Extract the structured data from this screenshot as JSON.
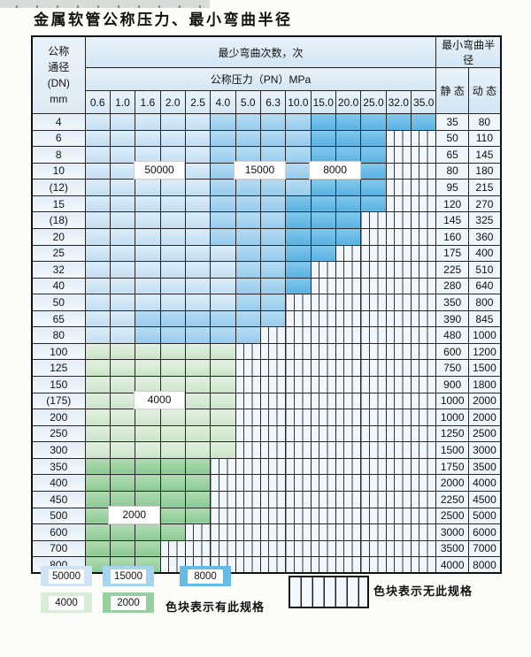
{
  "page": {
    "title": "金属软管公称压力、最小弯曲半径"
  },
  "table": {
    "corner_header": [
      "公称",
      "通径",
      "(DN)",
      "mm"
    ],
    "cycles_header": "最少弯曲次数，次",
    "pressure_header": "公称压力（PN）MPa",
    "radius_header": "最小弯曲半径",
    "static_header": "静 态",
    "dynamic_header": "动 态",
    "pressure_columns": [
      "0.6",
      "1.0",
      "1.6",
      "2.0",
      "2.5",
      "4.0",
      "5.0",
      "6.3",
      "10.0",
      "15.0",
      "20.0",
      "25.0",
      "32.0",
      "35.0"
    ],
    "rows": [
      {
        "dn": "4",
        "static": "35",
        "dynamic": "80",
        "bands": [
          {
            "cycles": 50000,
            "to_col": 5
          },
          {
            "cycles": 15000,
            "to_col": 9
          },
          {
            "cycles": 8000,
            "to_col": 14
          }
        ]
      },
      {
        "dn": "6",
        "static": "50",
        "dynamic": "110",
        "bands": [
          {
            "cycles": 50000,
            "to_col": 5
          },
          {
            "cycles": 15000,
            "to_col": 9
          },
          {
            "cycles": 8000,
            "to_col": 12
          }
        ]
      },
      {
        "dn": "8",
        "static": "65",
        "dynamic": "145",
        "bands": [
          {
            "cycles": 50000,
            "to_col": 5
          },
          {
            "cycles": 15000,
            "to_col": 9
          },
          {
            "cycles": 8000,
            "to_col": 12
          }
        ]
      },
      {
        "dn": "10",
        "static": "80",
        "dynamic": "180",
        "bands": [
          {
            "cycles": 50000,
            "to_col": 5
          },
          {
            "cycles": 15000,
            "to_col": 9
          },
          {
            "cycles": 8000,
            "to_col": 12
          }
        ]
      },
      {
        "dn": "(12)",
        "static": "95",
        "dynamic": "215",
        "bands": [
          {
            "cycles": 50000,
            "to_col": 5
          },
          {
            "cycles": 15000,
            "to_col": 9
          },
          {
            "cycles": 8000,
            "to_col": 12
          }
        ]
      },
      {
        "dn": "15",
        "static": "120",
        "dynamic": "270",
        "bands": [
          {
            "cycles": 50000,
            "to_col": 5
          },
          {
            "cycles": 15000,
            "to_col": 8
          },
          {
            "cycles": 8000,
            "to_col": 12
          }
        ]
      },
      {
        "dn": "(18)",
        "static": "145",
        "dynamic": "325",
        "bands": [
          {
            "cycles": 50000,
            "to_col": 5
          },
          {
            "cycles": 15000,
            "to_col": 8
          },
          {
            "cycles": 8000,
            "to_col": 11
          }
        ]
      },
      {
        "dn": "20",
        "static": "160",
        "dynamic": "360",
        "bands": [
          {
            "cycles": 50000,
            "to_col": 5
          },
          {
            "cycles": 15000,
            "to_col": 8
          },
          {
            "cycles": 8000,
            "to_col": 11
          }
        ]
      },
      {
        "dn": "25",
        "static": "175",
        "dynamic": "400",
        "bands": [
          {
            "cycles": 50000,
            "to_col": 6
          },
          {
            "cycles": 15000,
            "to_col": 8
          },
          {
            "cycles": 8000,
            "to_col": 10
          }
        ]
      },
      {
        "dn": "32",
        "static": "225",
        "dynamic": "510",
        "bands": [
          {
            "cycles": 50000,
            "to_col": 6
          },
          {
            "cycles": 15000,
            "to_col": 8
          },
          {
            "cycles": 8000,
            "to_col": 9
          }
        ]
      },
      {
        "dn": "40",
        "static": "280",
        "dynamic": "640",
        "bands": [
          {
            "cycles": 50000,
            "to_col": 6
          },
          {
            "cycles": 15000,
            "to_col": 8
          },
          {
            "cycles": 8000,
            "to_col": 9
          }
        ]
      },
      {
        "dn": "50",
        "static": "350",
        "dynamic": "800",
        "bands": [
          {
            "cycles": 50000,
            "to_col": 6
          },
          {
            "cycles": 15000,
            "to_col": 8
          }
        ]
      },
      {
        "dn": "65",
        "static": "390",
        "dynamic": "845",
        "bands": [
          {
            "cycles": 50000,
            "to_col": 2
          },
          {
            "cycles": 15000,
            "to_col": 8
          }
        ]
      },
      {
        "dn": "80",
        "static": "480",
        "dynamic": "1000",
        "bands": [
          {
            "cycles": 50000,
            "to_col": 2
          },
          {
            "cycles": 15000,
            "to_col": 7
          }
        ]
      },
      {
        "dn": "100",
        "static": "600",
        "dynamic": "1200",
        "bands": [
          {
            "cycles": 4000,
            "to_col": 6
          }
        ]
      },
      {
        "dn": "125",
        "static": "750",
        "dynamic": "1500",
        "bands": [
          {
            "cycles": 4000,
            "to_col": 6
          }
        ]
      },
      {
        "dn": "150",
        "static": "900",
        "dynamic": "1800",
        "bands": [
          {
            "cycles": 4000,
            "to_col": 6
          }
        ]
      },
      {
        "dn": "(175)",
        "static": "1000",
        "dynamic": "2000",
        "bands": [
          {
            "cycles": 4000,
            "to_col": 6
          }
        ]
      },
      {
        "dn": "200",
        "static": "1000",
        "dynamic": "2000",
        "bands": [
          {
            "cycles": 4000,
            "to_col": 6
          }
        ]
      },
      {
        "dn": "250",
        "static": "1250",
        "dynamic": "2500",
        "bands": [
          {
            "cycles": 4000,
            "to_col": 6
          }
        ]
      },
      {
        "dn": "300",
        "static": "1500",
        "dynamic": "3000",
        "bands": [
          {
            "cycles": 4000,
            "to_col": 6
          }
        ]
      },
      {
        "dn": "350",
        "static": "1750",
        "dynamic": "3500",
        "bands": [
          {
            "cycles": 2000,
            "to_col": 5
          }
        ]
      },
      {
        "dn": "400",
        "static": "2000",
        "dynamic": "4000",
        "bands": [
          {
            "cycles": 2000,
            "to_col": 5
          }
        ]
      },
      {
        "dn": "450",
        "static": "2250",
        "dynamic": "4500",
        "bands": [
          {
            "cycles": 2000,
            "to_col": 5
          }
        ]
      },
      {
        "dn": "500",
        "static": "2500",
        "dynamic": "5000",
        "bands": [
          {
            "cycles": 2000,
            "to_col": 5
          }
        ]
      },
      {
        "dn": "600",
        "static": "3000",
        "dynamic": "6000",
        "bands": [
          {
            "cycles": 2000,
            "to_col": 4
          }
        ]
      },
      {
        "dn": "700",
        "static": "3500",
        "dynamic": "7000",
        "bands": [
          {
            "cycles": 2000,
            "to_col": 3
          }
        ]
      },
      {
        "dn": "800",
        "static": "4000",
        "dynamic": "8000",
        "bands": [
          {
            "cycles": 2000,
            "to_col": 3
          }
        ]
      }
    ],
    "cycle_labels": [
      {
        "text": "50000",
        "col_start": 3,
        "col_end": 4,
        "row_boundary": 4
      },
      {
        "text": "15000",
        "col_start": 7,
        "col_end": 8,
        "row_boundary": 4
      },
      {
        "text": "8000",
        "col_start": 10,
        "col_end": 11,
        "row_boundary": 4
      },
      {
        "text": "4000",
        "col_start": 3,
        "col_end": 4,
        "row_boundary": 18
      },
      {
        "text": "2000",
        "col_start": 2,
        "col_end": 3,
        "row_boundary": 25
      }
    ]
  },
  "legend": {
    "chips": [
      {
        "label": "50000",
        "cycles": 50000
      },
      {
        "label": "15000",
        "cycles": 15000
      },
      {
        "label": "8000",
        "cycles": 8000
      },
      {
        "label": "4000",
        "cycles": 4000
      },
      {
        "label": "2000",
        "cycles": 2000
      }
    ],
    "has_spec_text": "色块表示有此规格",
    "no_spec_text": "色块表示无此规格"
  },
  "colors": {
    "cycles_50000": "#cfe5f5",
    "cycles_15000": "#a6d3ef",
    "cycles_8000": "#66bae6",
    "cycles_4000": "#d8ecd6",
    "cycles_2000": "#98cfa0",
    "hatch_background": "#f1f6fb",
    "grid_line": "#262626",
    "header_background": "#dcebf7"
  }
}
